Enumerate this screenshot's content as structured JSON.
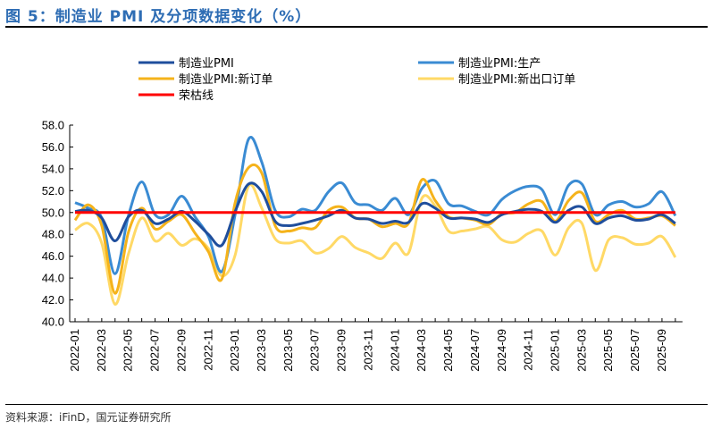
{
  "title": "图 5：制造业 PMI 及分项数据变化（%）",
  "source": "资料来源：iFinD，国元证券研究所",
  "chart_data": {
    "type": "line",
    "title": "",
    "xlabel": "",
    "ylabel": "",
    "ylim": [
      40,
      58
    ],
    "yticks": [
      "40.0",
      "42.0",
      "44.0",
      "46.0",
      "48.0",
      "50.0",
      "52.0",
      "54.0",
      "56.0",
      "58.0"
    ],
    "xtick_labels": [
      "2022-01",
      "2022-03",
      "2022-05",
      "2022-07",
      "2022-09",
      "2022-11",
      "2023-01",
      "2023-03",
      "2023-05",
      "2023-07",
      "2023-09",
      "2023-11",
      "2024-01",
      "2024-03",
      "2024-05",
      "2024-07",
      "2024-09",
      "2024-11",
      "2025-01",
      "2025-03",
      "2025-05",
      "2025-07",
      "2025-09"
    ],
    "x_start": "2022-01",
    "x_end": "2025-10",
    "grid": false,
    "legend": "top",
    "series": [
      {
        "name": "制造业PMI",
        "color": "#1F4E9C",
        "values": [
          50.1,
          50.2,
          49.5,
          47.4,
          49.6,
          50.2,
          49.0,
          49.4,
          50.1,
          49.2,
          48.0,
          47.0,
          50.1,
          52.6,
          51.9,
          49.2,
          48.8,
          49.0,
          49.3,
          49.7,
          50.2,
          49.5,
          49.4,
          49.0,
          49.2,
          49.1,
          50.8,
          50.4,
          49.5,
          49.5,
          49.4,
          49.1,
          49.8,
          50.1,
          50.3,
          50.1,
          49.1,
          50.2,
          50.5,
          49.0,
          49.5,
          49.7,
          49.3,
          49.4,
          49.8,
          49.0
        ]
      },
      {
        "name": "制造业PMI:生产",
        "color": "#3A8BD3",
        "values": [
          50.9,
          50.4,
          49.5,
          44.4,
          49.7,
          52.8,
          49.8,
          49.8,
          51.5,
          49.6,
          47.8,
          44.6,
          49.8,
          56.7,
          54.6,
          50.2,
          49.6,
          50.3,
          50.2,
          51.9,
          52.7,
          50.9,
          50.7,
          50.2,
          51.3,
          49.8,
          52.2,
          52.9,
          50.8,
          50.6,
          50.1,
          49.8,
          51.2,
          52.0,
          52.4,
          52.1,
          49.8,
          52.5,
          52.6,
          49.8,
          50.7,
          51.0,
          50.5,
          50.8,
          51.9,
          49.7
        ]
      },
      {
        "name": "制造业PMI:新订单",
        "color": "#F5B31B",
        "values": [
          49.3,
          50.7,
          48.8,
          42.6,
          48.2,
          50.4,
          48.5,
          49.2,
          49.8,
          48.1,
          46.4,
          43.9,
          50.9,
          54.1,
          53.6,
          48.8,
          48.3,
          48.6,
          48.6,
          50.2,
          50.5,
          49.5,
          49.4,
          48.7,
          49.0,
          49.0,
          53.0,
          51.1,
          49.6,
          49.5,
          49.3,
          48.9,
          49.9,
          50.0,
          50.8,
          51.0,
          49.2,
          51.1,
          51.8,
          49.2,
          49.8,
          50.2,
          49.4,
          49.5,
          49.7,
          48.8
        ]
      },
      {
        "name": "制造业PMI:新出口订单",
        "color": "#FFD966",
        "values": [
          48.4,
          49.0,
          47.2,
          41.6,
          46.2,
          49.5,
          47.4,
          48.1,
          47.0,
          47.6,
          46.7,
          44.2,
          46.1,
          52.4,
          50.4,
          47.6,
          47.2,
          47.4,
          46.3,
          46.7,
          47.8,
          46.8,
          46.3,
          45.8,
          47.2,
          46.3,
          51.3,
          50.6,
          48.3,
          48.3,
          48.5,
          48.7,
          47.5,
          47.3,
          48.1,
          48.3,
          46.1,
          48.6,
          49.0,
          44.7,
          47.5,
          47.7,
          47.1,
          47.2,
          47.8,
          45.9
        ]
      },
      {
        "name": "荣枯线",
        "color": "#FF0000",
        "values": [
          50,
          50,
          50,
          50,
          50,
          50,
          50,
          50,
          50,
          50,
          50,
          50,
          50,
          50,
          50,
          50,
          50,
          50,
          50,
          50,
          50,
          50,
          50,
          50,
          50,
          50,
          50,
          50,
          50,
          50,
          50,
          50,
          50,
          50,
          50,
          50,
          50,
          50,
          50,
          50,
          50,
          50,
          50,
          50,
          50,
          50
        ]
      }
    ]
  }
}
